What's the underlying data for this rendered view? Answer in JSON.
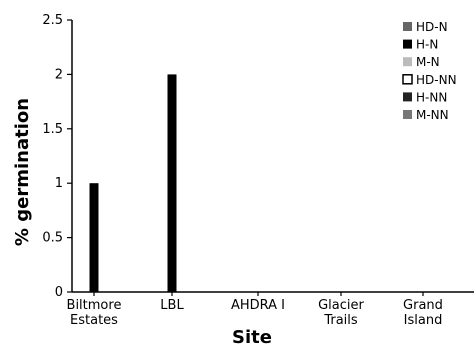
{
  "chart_data": {
    "type": "bar",
    "xlabel": "Site",
    "ylabel": "% germination",
    "ylim": [
      0,
      2.5
    ],
    "yticks": [
      "0",
      "0.5",
      "1",
      "1.5",
      "2",
      "2.5"
    ],
    "categories": [
      [
        "Biltmore",
        "Estates"
      ],
      [
        "LBL"
      ],
      [
        "AHDRA I"
      ],
      [
        "Glacier",
        "Trails"
      ],
      [
        "Grand",
        "Island"
      ]
    ],
    "series": [
      {
        "name": "HD-N",
        "color": "#666666",
        "fill": true,
        "values": [
          0,
          0,
          0,
          0,
          0
        ]
      },
      {
        "name": "H-N",
        "color": "#000000",
        "fill": true,
        "values": [
          1,
          2,
          0,
          0,
          0
        ]
      },
      {
        "name": "M-N",
        "color": "#bbbbbb",
        "fill": true,
        "values": [
          0,
          0,
          0,
          0,
          0
        ]
      },
      {
        "name": "HD-NN",
        "color": "#000000",
        "fill": false,
        "values": [
          0,
          0,
          0,
          0,
          0
        ]
      },
      {
        "name": "H-NN",
        "color": "#222222",
        "fill": true,
        "values": [
          0,
          0,
          0,
          0,
          0
        ]
      },
      {
        "name": "M-NN",
        "color": "#777777",
        "fill": true,
        "values": [
          0,
          0,
          0,
          0,
          0
        ]
      }
    ],
    "legend_position": "top-right",
    "grid": false
  }
}
